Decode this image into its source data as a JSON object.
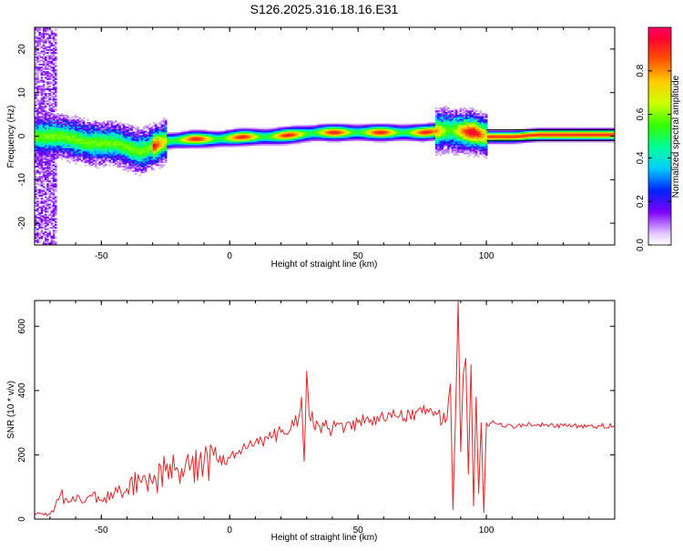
{
  "title": "S126.2025.316.18.16.E31",
  "chart_data": [
    {
      "type": "heatmap",
      "name": "spectrogram",
      "xlabel": "Height of straight line (km)",
      "ylabel": "Frequency (Hz)",
      "xlim": [
        -76,
        150
      ],
      "ylim": [
        -25,
        25
      ],
      "xticks": [
        -50,
        0,
        50,
        100
      ],
      "yticks": [
        -20,
        -10,
        0,
        10,
        20
      ],
      "colorbar": {
        "label": "Normalized spectral amplitude",
        "range": [
          0,
          1
        ],
        "ticks": [
          0.0,
          0.2,
          0.4,
          0.6,
          0.8
        ],
        "tick_labels": [
          "0.0",
          "0.2",
          "0.4",
          "0.6",
          "0.8"
        ]
      },
      "dominant_ridge": [
        {
          "x": -65,
          "f": 0.0
        },
        {
          "x": -55,
          "f": -1.5
        },
        {
          "x": -45,
          "f": -1.5
        },
        {
          "x": -35,
          "f": -3.5
        },
        {
          "x": -25,
          "f": -1.0
        },
        {
          "x": -15,
          "f": -0.5
        },
        {
          "x": -5,
          "f": -0.5
        },
        {
          "x": 5,
          "f": 0.0
        },
        {
          "x": 15,
          "f": 0.0
        },
        {
          "x": 25,
          "f": 0.5
        },
        {
          "x": 35,
          "f": 1.0
        },
        {
          "x": 45,
          "f": 1.0
        },
        {
          "x": 55,
          "f": 1.0
        },
        {
          "x": 65,
          "f": 1.0
        },
        {
          "x": 75,
          "f": 1.0
        },
        {
          "x": 85,
          "f": 1.5
        },
        {
          "x": 95,
          "f": 1.0
        },
        {
          "x": 100,
          "f": 0.0
        },
        {
          "x": 110,
          "f": 0.0
        },
        {
          "x": 120,
          "f": 0.5
        },
        {
          "x": 130,
          "f": 0.5
        },
        {
          "x": 140,
          "f": 0.5
        },
        {
          "x": 150,
          "f": 0.5
        }
      ],
      "reference_line_hz": [
        1.5,
        -1.0
      ]
    },
    {
      "type": "line",
      "name": "snr",
      "xlabel": "Height of straight line (km)",
      "ylabel": "SNR (10 * v/v)",
      "xlim": [
        -76,
        150
      ],
      "ylim": [
        0,
        680
      ],
      "xticks": [
        -50,
        0,
        50,
        100
      ],
      "yticks": [
        0,
        200,
        400,
        600
      ],
      "line_color": "#e8262a",
      "series": [
        {
          "name": "SNR",
          "x": [
            -76,
            -70,
            -68,
            -66,
            -64,
            -60,
            -55,
            -50,
            -45,
            -40,
            -35,
            -30,
            -25,
            -22,
            -20,
            -15,
            -10,
            -5,
            0,
            5,
            10,
            15,
            20,
            25,
            27,
            28,
            29,
            30,
            31,
            35,
            40,
            45,
            50,
            55,
            60,
            65,
            70,
            75,
            80,
            84,
            86,
            87,
            88,
            89,
            90,
            91,
            92,
            93,
            94,
            95,
            96,
            97,
            98,
            99,
            100,
            101,
            102,
            105,
            110,
            120,
            130,
            140,
            150
          ],
          "y": [
            15,
            15,
            40,
            75,
            65,
            55,
            70,
            60,
            80,
            95,
            120,
            110,
            150,
            200,
            150,
            170,
            175,
            185,
            190,
            220,
            240,
            250,
            270,
            290,
            320,
            380,
            180,
            460,
            320,
            290,
            280,
            285,
            300,
            310,
            310,
            320,
            330,
            330,
            335,
            300,
            420,
            30,
            320,
            680,
            210,
            450,
            500,
            140,
            480,
            40,
            380,
            80,
            300,
            20,
            300,
            290,
            300,
            295,
            290,
            295,
            290,
            290,
            290
          ]
        }
      ]
    }
  ]
}
